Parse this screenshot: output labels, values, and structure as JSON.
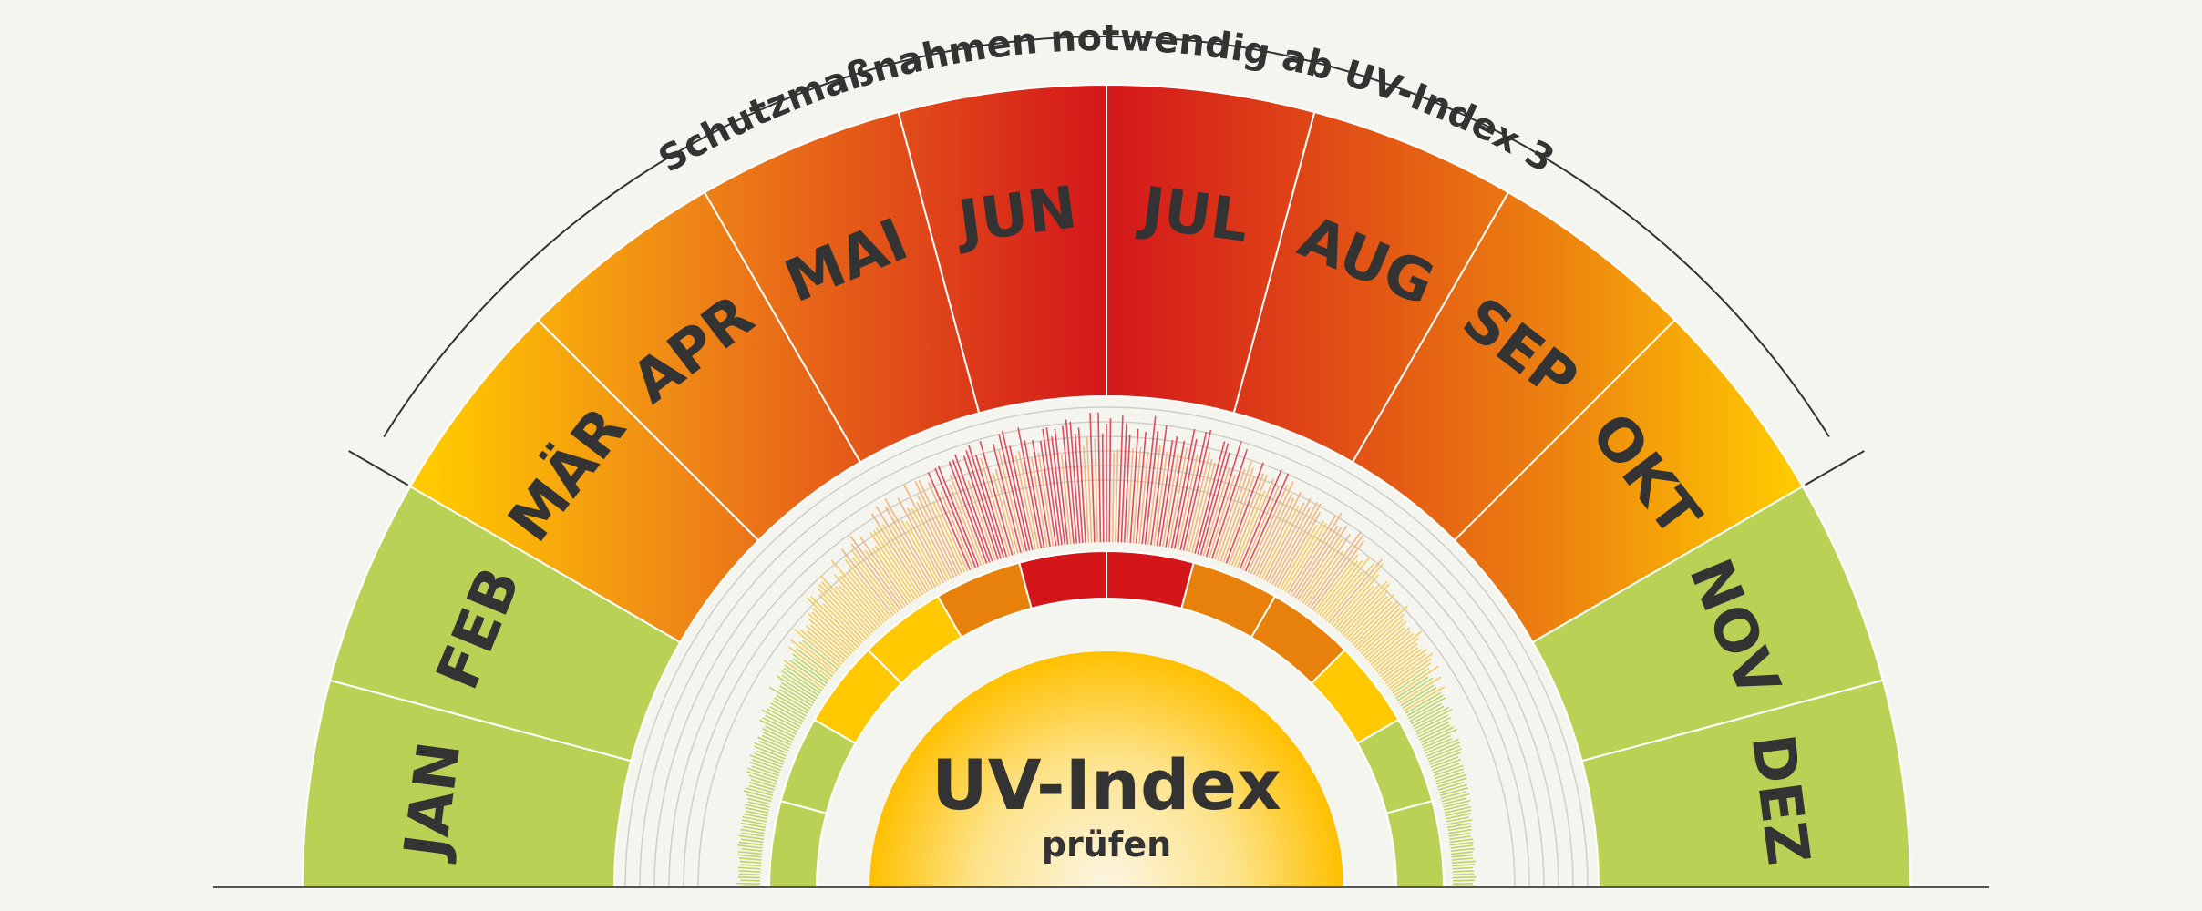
{
  "caption": "Schutzmaßnahmen notwendig ab UV-Index 3",
  "center": {
    "title": "UV-Index",
    "subtitle": "prüfen"
  },
  "months": [
    {
      "label": "JAN",
      "level": "low"
    },
    {
      "label": "FEB",
      "level": "low"
    },
    {
      "label": "MÄR",
      "level": "moderate"
    },
    {
      "label": "APR",
      "level": "moderate"
    },
    {
      "label": "MAI",
      "level": "high"
    },
    {
      "label": "JUN",
      "level": "veryhigh"
    },
    {
      "label": "JUL",
      "level": "veryhigh"
    },
    {
      "label": "AUG",
      "level": "high"
    },
    {
      "label": "SEP",
      "level": "high"
    },
    {
      "label": "OKT",
      "level": "moderate"
    },
    {
      "label": "NOV",
      "level": "low"
    },
    {
      "label": "DEZ",
      "level": "low"
    }
  ],
  "colors": {
    "low": "#b9d256",
    "moderate": "#f5a800",
    "high": "#e8731a",
    "veryhigh": "#d4161b",
    "yellow": "#ffc800",
    "background": "#f5f5f0",
    "text": "#333333"
  }
}
